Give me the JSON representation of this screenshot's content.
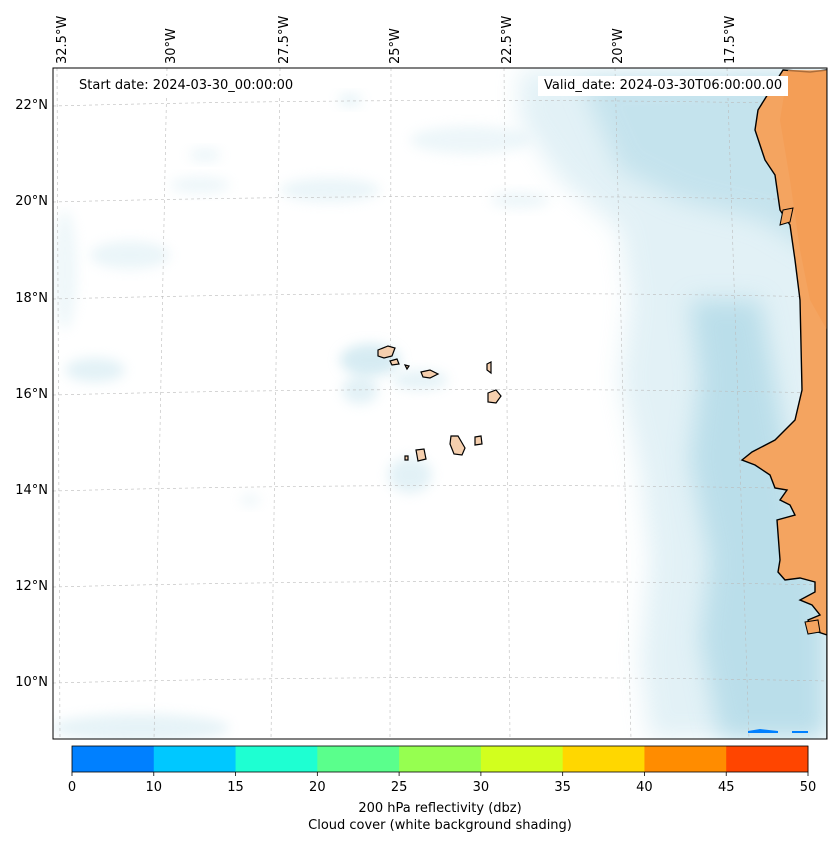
{
  "map": {
    "start_date_text": "Start date: 2024-03-30_00:00:00",
    "valid_date_text": "Valid_date: 2024-03-30T06:00:00.00",
    "lon_labels": [
      "32.5°W",
      "30°W",
      "27.5°W",
      "25°W",
      "22.5°W",
      "20°W",
      "17.5°W"
    ],
    "lat_labels": [
      "22°N",
      "20°N",
      "18°N",
      "16°N",
      "14°N",
      "12°N",
      "10°N"
    ],
    "land_color": "#f4a460",
    "cloud_color": "#add8e6",
    "features": [
      "coastline-west-africa",
      "cape-verde-islands",
      "cloud-cover-shading"
    ]
  },
  "colorbar": {
    "ticks": [
      "0",
      "10",
      "15",
      "20",
      "25",
      "30",
      "35",
      "40",
      "45",
      "50"
    ],
    "colors": [
      "#0080ff",
      "#00c8ff",
      "#1effd2",
      "#5aff8c",
      "#96ff50",
      "#d2ff1e",
      "#ffd700",
      "#ff8c00",
      "#ff4500"
    ],
    "label_line1": "200 hPa reflectivity (dbz)",
    "label_line2": "Cloud cover (white background shading)"
  }
}
